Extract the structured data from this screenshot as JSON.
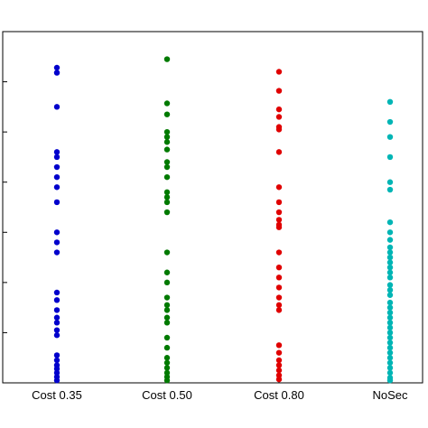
{
  "chart_data": {
    "type": "scatter",
    "title": "",
    "xlabel": "",
    "ylabel": "",
    "categories": [
      "Cost 0.35",
      "Cost 0.50",
      "Cost 0.80",
      "NoSec"
    ],
    "ylim": [
      0,
      7
    ],
    "grid": false,
    "legend": "none",
    "series": [
      {
        "color": "#0000cc",
        "values": [
          6.28,
          6.18,
          5.5,
          4.6,
          4.5,
          4.3,
          4.1,
          3.9,
          3.6,
          3.0,
          2.8,
          2.6,
          1.8,
          1.65,
          1.45,
          1.3,
          1.2,
          1.05,
          0.95,
          0.55,
          0.45,
          0.35,
          0.28,
          0.2,
          0.12,
          0.05
        ]
      },
      {
        "color": "#007a00",
        "values": [
          6.45,
          5.57,
          5.35,
          5.0,
          4.9,
          4.8,
          4.65,
          4.4,
          4.3,
          4.1,
          3.8,
          3.7,
          3.6,
          3.4,
          2.6,
          2.2,
          2.0,
          1.7,
          1.55,
          1.45,
          1.3,
          1.2,
          0.9,
          0.7,
          0.5,
          0.4,
          0.3,
          0.2,
          0.12,
          0.05
        ]
      },
      {
        "color": "#e00000",
        "values": [
          6.2,
          5.82,
          5.45,
          5.3,
          5.1,
          5.05,
          4.6,
          3.9,
          3.6,
          3.4,
          3.25,
          3.15,
          3.1,
          2.6,
          2.3,
          2.1,
          1.9,
          1.7,
          1.55,
          1.45,
          0.75,
          0.6,
          0.45,
          0.35,
          0.25,
          0.15,
          0.07
        ]
      },
      {
        "color": "#00b5b5",
        "values": [
          5.6,
          5.2,
          4.9,
          4.5,
          4.0,
          3.85,
          3.2,
          3.0,
          2.85,
          2.7,
          2.6,
          2.5,
          2.4,
          2.3,
          2.2,
          2.1,
          1.95,
          1.85,
          1.75,
          1.6,
          1.5,
          1.4,
          1.3,
          1.2,
          1.1,
          1.0,
          0.9,
          0.8,
          0.7,
          0.6,
          0.5,
          0.4,
          0.3,
          0.2,
          0.1,
          0.05
        ]
      }
    ]
  }
}
